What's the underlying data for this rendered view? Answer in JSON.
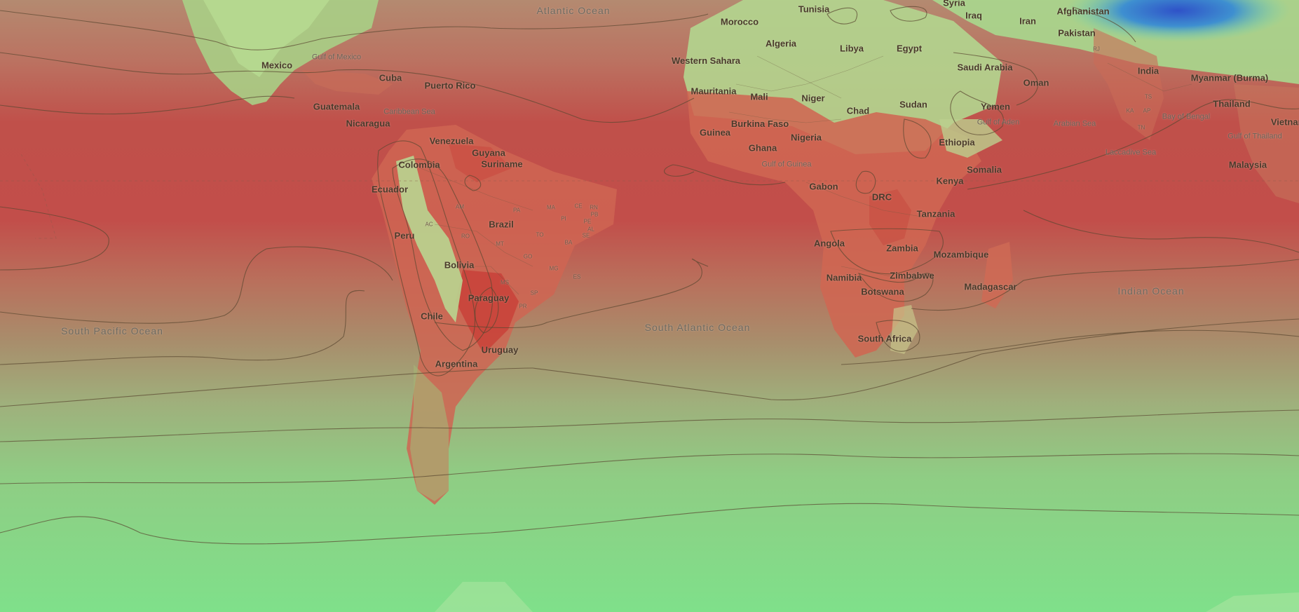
{
  "map": {
    "countries": [
      "Mexico",
      "Cuba",
      "Puerto Rico",
      "Guatemala",
      "Nicaragua",
      "Venezuela",
      "Guyana",
      "Suriname",
      "Colombia",
      "Ecuador",
      "Brazil",
      "Peru",
      "Bolivia",
      "Paraguay",
      "Chile",
      "Uruguay",
      "Argentina",
      "Morocco",
      "Tunisia",
      "Algeria",
      "Libya",
      "Egypt",
      "Western Sahara",
      "Mauritania",
      "Mali",
      "Niger",
      "Chad",
      "Sudan",
      "Burkina Faso",
      "Guinea",
      "Ghana",
      "Nigeria",
      "Ethiopia",
      "Somalia",
      "Kenya",
      "Gabon",
      "DRC",
      "Tanzania",
      "Angola",
      "Zambia",
      "Mozambique",
      "Namibia",
      "Zimbabwe",
      "Botswana",
      "Madagascar",
      "South Africa",
      "Syria",
      "Iraq",
      "Iran",
      "Afghanistan",
      "Pakistan",
      "Saudi Arabia",
      "Oman",
      "Yemen",
      "India",
      "Myanmar (Burma)",
      "Thailand",
      "Vietnam",
      "Malaysia"
    ],
    "seas": [
      "Gulf of Mexico",
      "Caribbean Sea",
      "Gulf of Guinea",
      "Gulf of Aden",
      "Arabian Sea",
      "Bay of Bengal",
      "Laccadive Sea",
      "Gulf of Thailand"
    ],
    "oceans": [
      "Atlantic Ocean",
      "South Pacific Ocean",
      "South Atlantic Ocean",
      "Indian Ocean"
    ],
    "states": [
      "AM",
      "PA",
      "MA",
      "CE",
      "RN",
      "PB",
      "PE",
      "AL",
      "SE",
      "BA",
      "TO",
      "PI",
      "AC",
      "RO",
      "MT",
      "GO",
      "MG",
      "ES",
      "MS",
      "SP",
      "PR",
      "RJ",
      "KA",
      "TN",
      "AP",
      "TS"
    ]
  }
}
